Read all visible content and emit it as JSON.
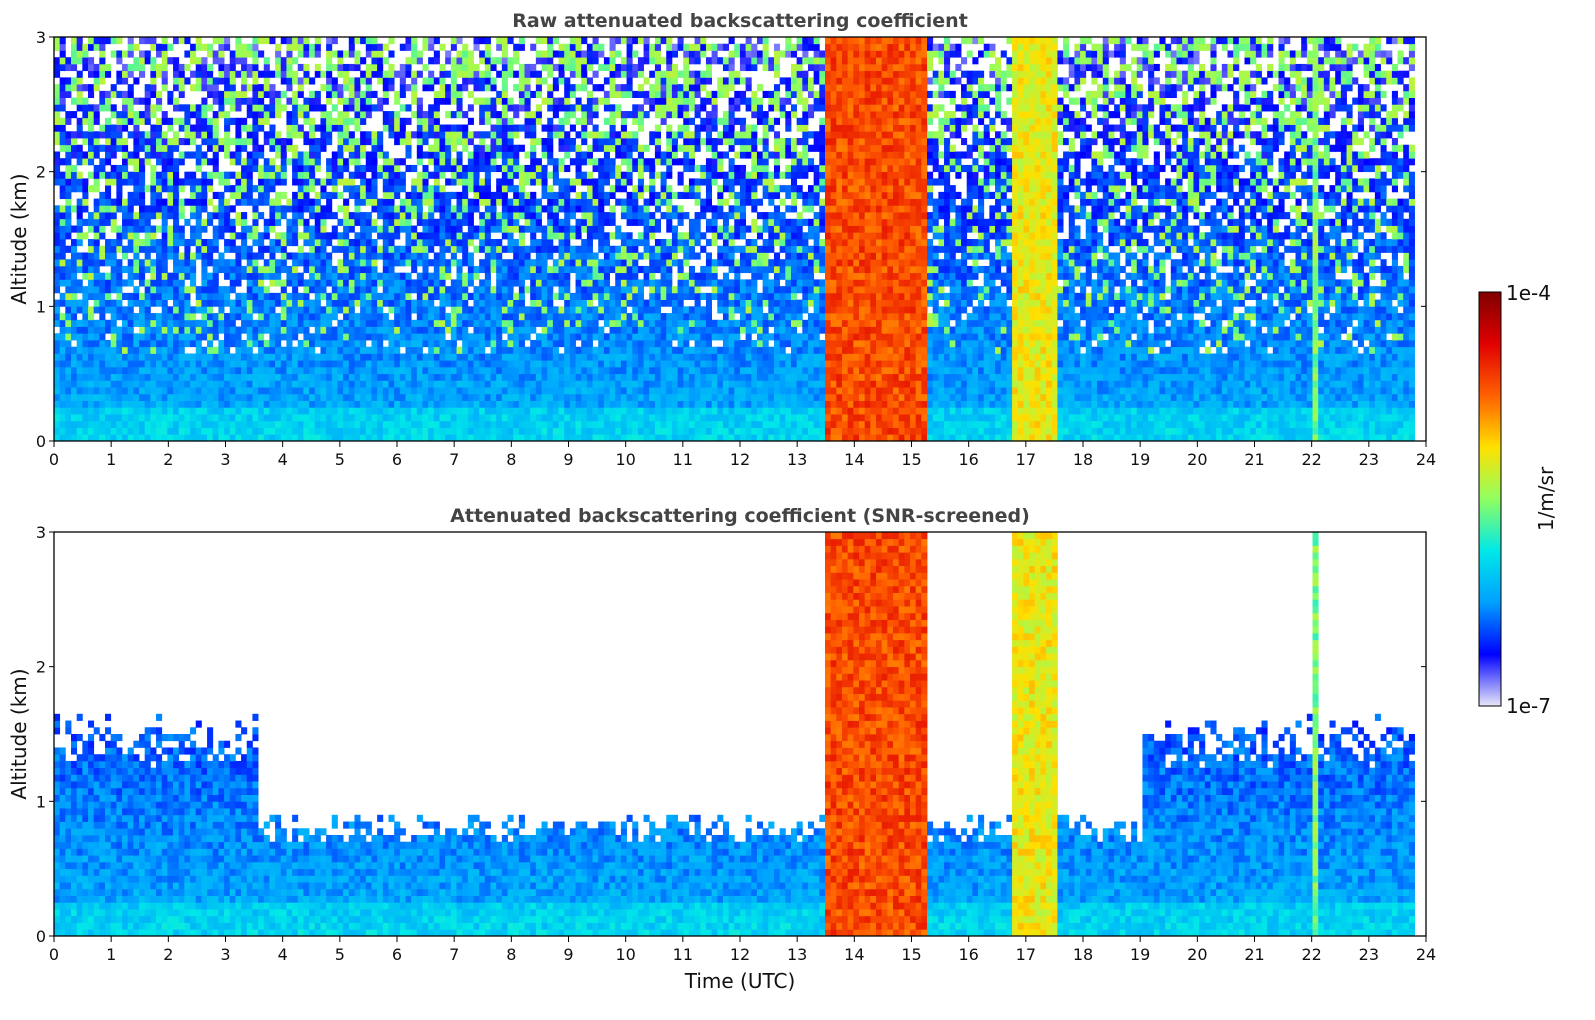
{
  "chart_data": [
    {
      "type": "heatmap",
      "title": "Raw attenuated backscattering coefficient",
      "xlabel": "",
      "ylabel": "Altitude (km)",
      "xlim": [
        0,
        24
      ],
      "ylim": [
        0,
        3
      ],
      "x_ticks": [
        0,
        1,
        2,
        3,
        4,
        5,
        6,
        7,
        8,
        9,
        10,
        11,
        12,
        13,
        14,
        15,
        16,
        17,
        18,
        19,
        20,
        21,
        22,
        23,
        24
      ],
      "y_ticks": [
        0,
        1,
        2,
        3
      ],
      "data_extent_x": [
        0,
        23.8
      ],
      "cloud_bands": [
        {
          "x_start": 13.4,
          "x_end": 15.2,
          "y_top": 3.0,
          "level": "high"
        },
        {
          "x_start": 16.7,
          "x_end": 17.5,
          "y_top": 3.0,
          "level": "medium-high"
        },
        {
          "x_start": 22.0,
          "x_end": 22.1,
          "y_top": 3.0,
          "level": "medium"
        }
      ],
      "screened": false
    },
    {
      "type": "heatmap",
      "title": "Attenuated backscattering coefficient (SNR-screened)",
      "xlabel": "Time (UTC)",
      "ylabel": "Altitude (km)",
      "xlim": [
        0,
        24
      ],
      "ylim": [
        0,
        3
      ],
      "x_ticks": [
        0,
        1,
        2,
        3,
        4,
        5,
        6,
        7,
        8,
        9,
        10,
        11,
        12,
        13,
        14,
        15,
        16,
        17,
        18,
        19,
        20,
        21,
        22,
        23,
        24
      ],
      "y_ticks": [
        0,
        1,
        2,
        3
      ],
      "data_extent_x": [
        0,
        23.8
      ],
      "cloud_bands": [
        {
          "x_start": 13.4,
          "x_end": 15.2,
          "y_top": 3.0,
          "level": "high"
        },
        {
          "x_start": 16.7,
          "x_end": 17.5,
          "y_top": 3.0,
          "level": "medium-high"
        },
        {
          "x_start": 22.0,
          "x_end": 22.1,
          "y_top": 3.0,
          "level": "medium"
        }
      ],
      "screened": true
    }
  ],
  "colorbar": {
    "label": "1/m/sr",
    "max_label": "1e-4",
    "min_label": "1e-7",
    "scale": "log",
    "colormap": "jet",
    "stops": [
      "#e8e8f8",
      "#0000ff",
      "#00a0ff",
      "#00e8e8",
      "#90ff60",
      "#ffe000",
      "#ff6000",
      "#e00000",
      "#800000"
    ]
  }
}
